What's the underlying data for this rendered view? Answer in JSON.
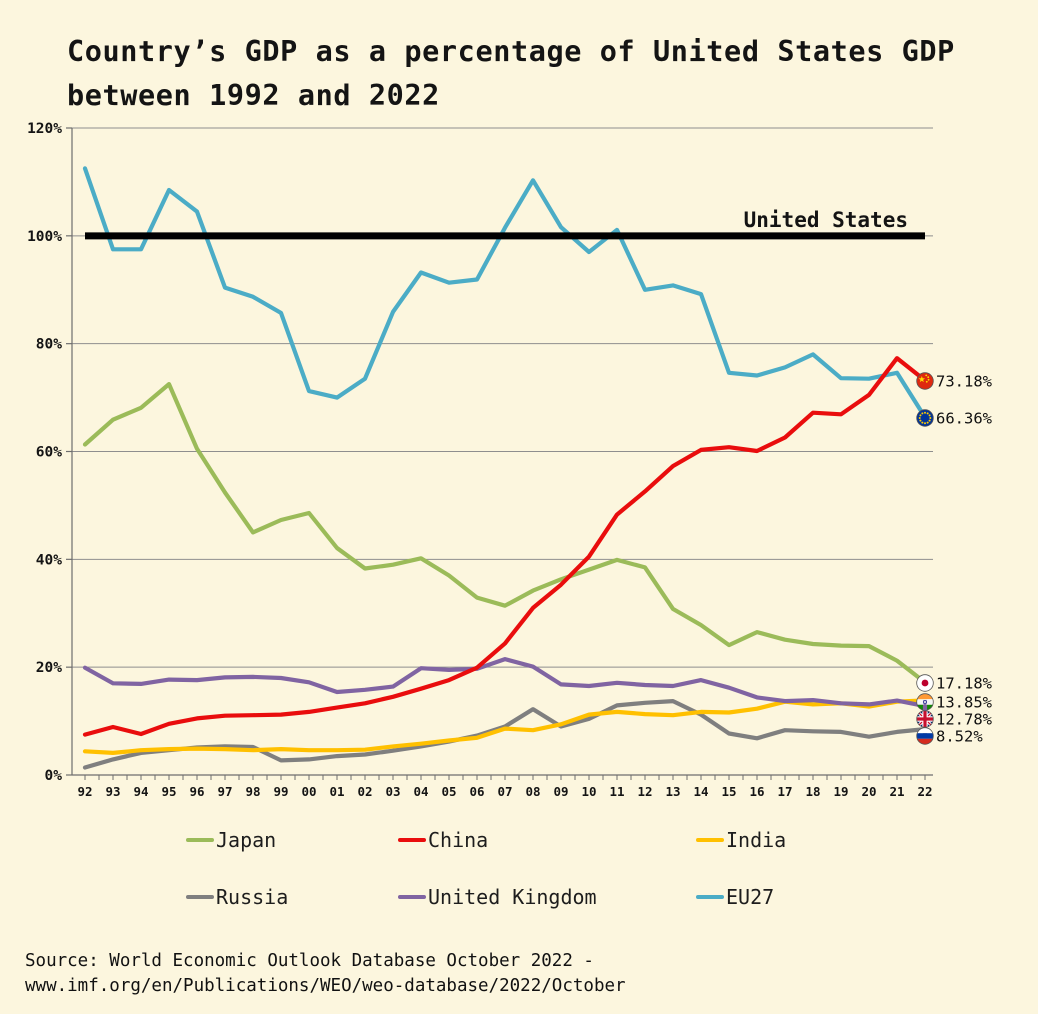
{
  "page": {
    "bg_color": "#FCF6DE"
  },
  "title": {
    "line1": "Country’s GDP as a percentage of United States GDP",
    "line2": "between 1992 and 2022"
  },
  "chart_data": {
    "type": "line",
    "title": "Country’s GDP as a percentage of United States GDP between 1992 and 2022",
    "xlabel": "",
    "ylabel": "",
    "ylim": [
      0,
      120
    ],
    "grid": "horizontal",
    "legend_position": "bottom",
    "x_tick_labels": [
      "92",
      "93",
      "94",
      "95",
      "96",
      "97",
      "98",
      "99",
      "00",
      "01",
      "02",
      "03",
      "04",
      "05",
      "06",
      "07",
      "08",
      "09",
      "10",
      "11",
      "12",
      "13",
      "14",
      "15",
      "16",
      "17",
      "18",
      "19",
      "20",
      "21",
      "22"
    ],
    "y_tick_labels": [
      "0%",
      "20%",
      "40%",
      "60%",
      "80%",
      "100%",
      "120%"
    ],
    "reference_line": {
      "label": "United States",
      "value": 100,
      "color": "#000000"
    },
    "series": [
      {
        "name": "EU27",
        "color": "#4BACC6",
        "flag": "eu",
        "end_label": "66.36%",
        "values": [
          112.5,
          97.5,
          97.5,
          108.5,
          104.5,
          90.4,
          88.7,
          85.7,
          71.2,
          70.0,
          73.5,
          85.9,
          93.2,
          91.3,
          91.9,
          101.5,
          110.3,
          101.6,
          97.0,
          101.1,
          90.0,
          90.8,
          89.2,
          74.6,
          74.1,
          75.6,
          78.0,
          73.6,
          73.5,
          74.6,
          66.36
        ]
      },
      {
        "name": "Japan",
        "color": "#9BBB59",
        "flag": "japan",
        "end_label": "17.18%",
        "values": [
          61.3,
          65.9,
          68.1,
          72.5,
          60.5,
          52.4,
          45.0,
          47.3,
          48.6,
          42.1,
          38.3,
          39.0,
          40.2,
          37.0,
          32.9,
          31.4,
          34.2,
          36.3,
          38.1,
          39.9,
          38.5,
          30.8,
          27.8,
          24.1,
          26.5,
          25.1,
          24.3,
          24.0,
          23.9,
          21.2,
          17.18
        ]
      },
      {
        "name": "Russia",
        "color": "#7F7F7F",
        "flag": "russia",
        "end_label": "8.52%",
        "values": [
          1.4,
          2.9,
          4.1,
          4.6,
          5.1,
          5.3,
          5.2,
          2.7,
          2.9,
          3.5,
          3.8,
          4.5,
          5.3,
          6.2,
          7.3,
          9.0,
          12.2,
          9.0,
          10.4,
          12.9,
          13.4,
          13.7,
          11.2,
          7.7,
          6.8,
          8.3,
          8.1,
          8.0,
          7.1,
          8.0,
          8.52
        ]
      },
      {
        "name": "India",
        "color": "#FFC000",
        "flag": "india",
        "end_label": "13.85%",
        "values": [
          4.4,
          4.1,
          4.6,
          4.8,
          4.9,
          4.8,
          4.6,
          4.8,
          4.6,
          4.6,
          4.7,
          5.3,
          5.8,
          6.4,
          6.9,
          8.6,
          8.3,
          9.4,
          11.2,
          11.7,
          11.3,
          11.1,
          11.7,
          11.6,
          12.3,
          13.6,
          13.1,
          13.3,
          12.7,
          13.6,
          13.85
        ]
      },
      {
        "name": "United Kingdom",
        "color": "#8064A2",
        "flag": "uk",
        "end_label": "12.78%",
        "values": [
          19.9,
          17.0,
          16.9,
          17.7,
          17.6,
          18.1,
          18.2,
          18.0,
          17.2,
          15.4,
          15.8,
          16.4,
          19.8,
          19.5,
          19.7,
          21.5,
          20.1,
          16.8,
          16.5,
          17.1,
          16.7,
          16.5,
          17.6,
          16.2,
          14.4,
          13.7,
          13.9,
          13.3,
          13.1,
          13.8,
          12.78
        ]
      },
      {
        "name": "China",
        "color": "#E90D0D",
        "flag": "china",
        "end_label": "73.18%",
        "values": [
          7.5,
          8.9,
          7.6,
          9.5,
          10.5,
          11.0,
          11.1,
          11.2,
          11.7,
          12.5,
          13.3,
          14.5,
          16.0,
          17.6,
          19.9,
          24.4,
          31.0,
          35.3,
          40.5,
          48.3,
          52.6,
          57.3,
          60.3,
          60.8,
          60.1,
          62.6,
          67.2,
          66.9,
          70.5,
          77.3,
          73.18
        ]
      }
    ]
  },
  "legend": {
    "rows": [
      [
        {
          "label": "Japan",
          "color": "#9BBB59"
        },
        {
          "label": "China",
          "color": "#E90D0D"
        },
        {
          "label": "India",
          "color": "#FFC000"
        }
      ],
      [
        {
          "label": "Russia",
          "color": "#7F7F7F"
        },
        {
          "label": "United Kingdom",
          "color": "#8064A2"
        },
        {
          "label": "EU27",
          "color": "#4BACC6"
        }
      ]
    ]
  },
  "source": {
    "line1": "Source: World Economic Outlook Database October 2022 -",
    "line2": "www.imf.org/en/Publications/WEO/weo-database/2022/October"
  }
}
